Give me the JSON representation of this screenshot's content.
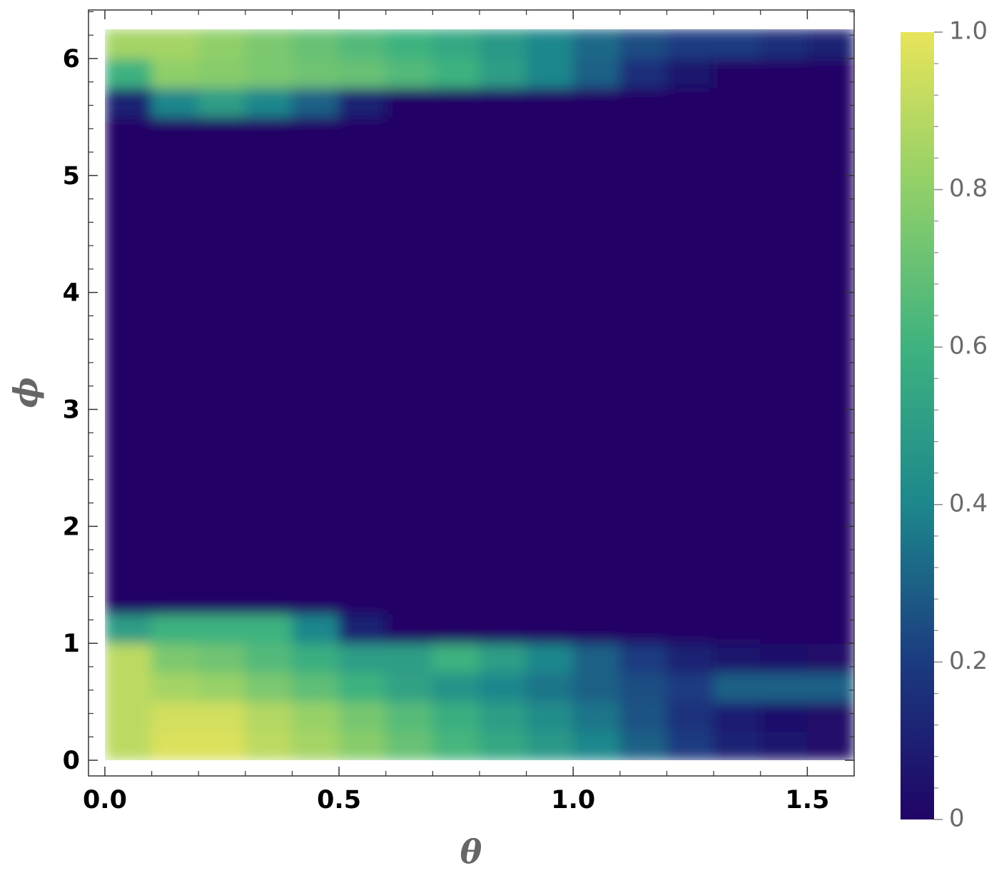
{
  "chart_data": {
    "type": "heatmap",
    "xlabel": "θ",
    "ylabel": "ϕ",
    "x": [
      0.05,
      0.15,
      0.25,
      0.35,
      0.45,
      0.55,
      0.65,
      0.75,
      0.85,
      0.95,
      1.05,
      1.15,
      1.25,
      1.35,
      1.45,
      1.55
    ],
    "y": [
      0.125,
      0.375,
      0.625,
      0.875,
      1.125,
      1.375,
      1.625,
      1.875,
      2.125,
      2.375,
      2.625,
      2.875,
      3.125,
      3.375,
      3.625,
      3.875,
      4.125,
      4.375,
      4.625,
      4.875,
      5.125,
      5.375,
      5.625,
      5.875,
      6.125
    ],
    "z": [
      [
        0.9,
        0.97,
        0.97,
        0.9,
        0.85,
        0.78,
        0.7,
        0.62,
        0.55,
        0.48,
        0.4,
        0.3,
        0.2,
        0.1,
        0.05,
        0.02
      ],
      [
        0.9,
        0.95,
        0.95,
        0.88,
        0.82,
        0.74,
        0.66,
        0.58,
        0.5,
        0.43,
        0.35,
        0.26,
        0.17,
        0.09,
        0.04,
        0.02
      ],
      [
        0.9,
        0.85,
        0.82,
        0.75,
        0.68,
        0.6,
        0.52,
        0.45,
        0.4,
        0.35,
        0.3,
        0.25,
        0.2,
        0.3,
        0.3,
        0.3
      ],
      [
        0.9,
        0.75,
        0.72,
        0.65,
        0.58,
        0.5,
        0.5,
        0.6,
        0.5,
        0.4,
        0.3,
        0.2,
        0.1,
        0.05,
        0.03,
        0.02
      ],
      [
        0.5,
        0.6,
        0.6,
        0.6,
        0.4,
        0.1,
        0,
        0,
        0,
        0,
        0,
        0,
        0,
        0,
        0,
        0
      ],
      [
        0,
        0,
        0,
        0,
        0,
        0,
        0,
        0,
        0,
        0,
        0,
        0,
        0,
        0,
        0,
        0
      ],
      [
        0,
        0,
        0,
        0,
        0,
        0,
        0,
        0,
        0,
        0,
        0,
        0,
        0,
        0,
        0,
        0
      ],
      [
        0,
        0,
        0,
        0,
        0,
        0,
        0,
        0,
        0,
        0,
        0,
        0,
        0,
        0,
        0,
        0
      ],
      [
        0,
        0,
        0,
        0,
        0,
        0,
        0,
        0,
        0,
        0,
        0,
        0,
        0,
        0,
        0,
        0
      ],
      [
        0,
        0,
        0,
        0,
        0,
        0,
        0,
        0,
        0,
        0,
        0,
        0,
        0,
        0,
        0,
        0
      ],
      [
        0,
        0,
        0,
        0,
        0,
        0,
        0,
        0,
        0,
        0,
        0,
        0,
        0,
        0,
        0,
        0
      ],
      [
        0,
        0,
        0,
        0,
        0,
        0,
        0,
        0,
        0,
        0,
        0,
        0,
        0,
        0,
        0,
        0
      ],
      [
        0,
        0,
        0,
        0,
        0,
        0,
        0,
        0,
        0,
        0,
        0,
        0,
        0,
        0,
        0,
        0
      ],
      [
        0,
        0,
        0,
        0,
        0,
        0,
        0,
        0,
        0,
        0,
        0,
        0,
        0,
        0,
        0,
        0
      ],
      [
        0,
        0,
        0,
        0,
        0,
        0,
        0,
        0,
        0,
        0,
        0,
        0,
        0,
        0,
        0,
        0
      ],
      [
        0,
        0,
        0,
        0,
        0,
        0,
        0,
        0,
        0,
        0,
        0,
        0,
        0,
        0,
        0,
        0
      ],
      [
        0,
        0,
        0,
        0,
        0,
        0,
        0,
        0,
        0,
        0,
        0,
        0,
        0,
        0,
        0,
        0
      ],
      [
        0,
        0,
        0,
        0,
        0,
        0,
        0,
        0,
        0,
        0,
        0,
        0,
        0,
        0,
        0,
        0
      ],
      [
        0,
        0,
        0,
        0,
        0,
        0,
        0,
        0,
        0,
        0,
        0,
        0,
        0,
        0,
        0,
        0
      ],
      [
        0,
        0,
        0,
        0,
        0,
        0,
        0,
        0,
        0,
        0,
        0,
        0,
        0,
        0,
        0,
        0
      ],
      [
        0,
        0,
        0,
        0,
        0,
        0,
        0,
        0,
        0,
        0,
        0,
        0,
        0,
        0,
        0,
        0
      ],
      [
        0,
        0,
        0,
        0,
        0,
        0,
        0,
        0,
        0,
        0,
        0,
        0,
        0,
        0,
        0,
        0
      ],
      [
        0.1,
        0.4,
        0.5,
        0.4,
        0.3,
        0.1,
        0,
        0,
        0,
        0,
        0,
        0,
        0,
        0,
        0,
        0
      ],
      [
        0.6,
        0.8,
        0.78,
        0.75,
        0.72,
        0.7,
        0.65,
        0.6,
        0.5,
        0.4,
        0.3,
        0.15,
        0.05,
        0,
        0,
        0
      ],
      [
        0.85,
        0.85,
        0.8,
        0.75,
        0.7,
        0.65,
        0.6,
        0.55,
        0.48,
        0.4,
        0.32,
        0.25,
        0.2,
        0.2,
        0.15,
        0.1
      ]
    ],
    "xlim": [
      -0.035,
      1.6
    ],
    "ylim": [
      -0.134,
      6.415
    ],
    "xticks": [
      {
        "value": 0,
        "label": "0.0"
      },
      0.5,
      {
        "value": 1,
        "label": "1.0"
      },
      1.5
    ],
    "yticks": [
      0,
      1,
      2,
      3,
      4,
      5,
      6
    ],
    "zlim": [
      0,
      1
    ],
    "zticks": [
      0,
      0.2,
      0.4,
      0.6,
      0.8,
      {
        "value": 1,
        "label": "1.0"
      }
    ],
    "colormap": [
      "#200466",
      "#1b3b80",
      "#1d878c",
      "#3eb27f",
      "#8fcf69",
      "#e8e45a"
    ]
  }
}
